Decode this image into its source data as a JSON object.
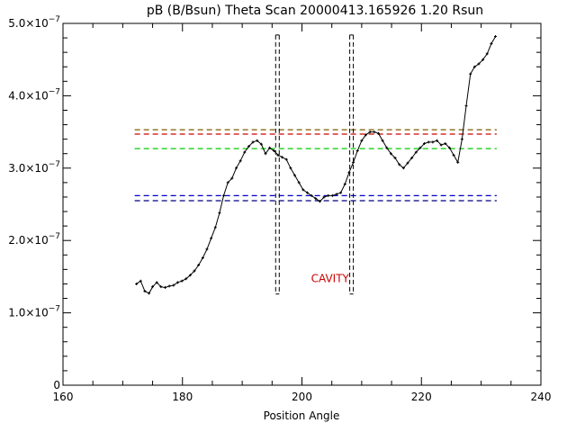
{
  "chart_data": {
    "type": "line",
    "title": "pB (B/Bsun) Theta Scan 20000413.165926 1.20 Rsun",
    "xlabel": "Position Angle",
    "ylabel": "",
    "xlim": [
      160,
      240
    ],
    "ylim": [
      0,
      5e-07
    ],
    "x_ticks": [
      160,
      180,
      200,
      220,
      240
    ],
    "x_tick_labels": [
      "160",
      "180",
      "200",
      "220",
      "240"
    ],
    "y_ticks": [
      0,
      1e-07,
      2e-07,
      3e-07,
      4e-07,
      5e-07
    ],
    "y_tick_labels": [
      {
        "mantissa": "0",
        "exponent": ""
      },
      {
        "mantissa": "1.0×10",
        "exponent": "−7"
      },
      {
        "mantissa": "2.0×10",
        "exponent": "−7"
      },
      {
        "mantissa": "3.0×10",
        "exponent": "−7"
      },
      {
        "mantissa": "4.0×10",
        "exponent": "−7"
      },
      {
        "mantissa": "5.0×10",
        "exponent": "−7"
      }
    ],
    "grid": false,
    "series": [
      {
        "style": "line-with-points",
        "color": "#000000",
        "x": [
          172.3,
          173.0,
          173.7,
          174.4,
          175.0,
          175.7,
          176.4,
          177.1,
          177.8,
          178.5,
          179.2,
          179.9,
          180.6,
          181.3,
          182.0,
          182.7,
          183.4,
          184.1,
          184.8,
          185.5,
          186.2,
          186.9,
          187.6,
          188.3,
          189.0,
          189.7,
          190.4,
          191.1,
          191.8,
          192.5,
          193.2,
          193.9,
          194.6,
          195.3,
          196.0,
          196.7,
          197.4,
          198.1,
          198.8,
          199.5,
          200.2,
          200.9,
          201.6,
          202.3,
          203.0,
          203.7,
          204.4,
          205.1,
          205.8,
          206.5,
          207.2,
          207.9,
          208.6,
          209.3,
          210.0,
          210.7,
          211.4,
          212.1,
          212.8,
          213.5,
          214.2,
          214.9,
          215.6,
          216.3,
          217.0,
          217.7,
          218.4,
          219.1,
          219.8,
          220.5,
          221.2,
          221.9,
          222.6,
          223.3,
          224.0,
          224.7,
          225.4,
          226.1,
          226.8,
          227.5,
          228.2,
          228.9,
          229.6,
          230.3,
          231.0,
          231.7,
          232.4
        ],
        "y": [
          1.4e-07,
          1.44e-07,
          1.3e-07,
          1.27e-07,
          1.36e-07,
          1.42e-07,
          1.36e-07,
          1.35e-07,
          1.37e-07,
          1.38e-07,
          1.42e-07,
          1.44e-07,
          1.47e-07,
          1.52e-07,
          1.58e-07,
          1.66e-07,
          1.76e-07,
          1.88e-07,
          2.03e-07,
          2.18e-07,
          2.38e-07,
          2.62e-07,
          2.8e-07,
          2.86e-07,
          3e-07,
          3.1e-07,
          3.22e-07,
          3.3e-07,
          3.36e-07,
          3.38e-07,
          3.33e-07,
          3.2e-07,
          3.28e-07,
          3.24e-07,
          3.18e-07,
          3.15e-07,
          3.12e-07,
          3e-07,
          2.9e-07,
          2.8e-07,
          2.7e-07,
          2.66e-07,
          2.62e-07,
          2.58e-07,
          2.54e-07,
          2.6e-07,
          2.62e-07,
          2.62e-07,
          2.64e-07,
          2.66e-07,
          2.78e-07,
          2.94e-07,
          3.08e-07,
          3.24e-07,
          3.38e-07,
          3.46e-07,
          3.5e-07,
          3.5e-07,
          3.48e-07,
          3.38e-07,
          3.28e-07,
          3.2e-07,
          3.14e-07,
          3.05e-07,
          3e-07,
          3.07e-07,
          3.14e-07,
          3.22e-07,
          3.28e-07,
          3.34e-07,
          3.36e-07,
          3.36e-07,
          3.38e-07,
          3.32e-07,
          3.34e-07,
          3.28e-07,
          3.18e-07,
          3.08e-07,
          3.4e-07,
          3.86e-07,
          4.3e-07,
          4.4e-07,
          4.44e-07,
          4.5e-07,
          4.58e-07,
          4.72e-07,
          4.82e-07
        ]
      }
    ],
    "reference_lines": [
      {
        "orientation": "horizontal",
        "y": 3.53e-07,
        "color": "#8b6914",
        "style": "dashed"
      },
      {
        "orientation": "horizontal",
        "y": 3.47e-07,
        "color": "#cc0000",
        "style": "dashed"
      },
      {
        "orientation": "horizontal",
        "y": 3.27e-07,
        "color": "#00cc00",
        "style": "dashed"
      },
      {
        "orientation": "horizontal",
        "y": 2.62e-07,
        "color": "#0000cc",
        "style": "dashed"
      },
      {
        "orientation": "horizontal",
        "y": 2.55e-07,
        "color": "#000080",
        "style": "dashed"
      }
    ],
    "cavity_markers": [
      {
        "x_left": 195.6,
        "x_right": 196.2,
        "y_bottom": 1.26e-07,
        "y_top": 4.84e-07,
        "color": "#000000",
        "style": "dashed"
      },
      {
        "x_left": 208.0,
        "x_right": 208.6,
        "y_bottom": 1.26e-07,
        "y_top": 4.84e-07,
        "color": "#000000",
        "style": "dashed"
      }
    ],
    "annotations": [
      {
        "text": "CAVITY",
        "x": 202,
        "y": 1.45e-07,
        "color": "#cc0000"
      }
    ]
  }
}
